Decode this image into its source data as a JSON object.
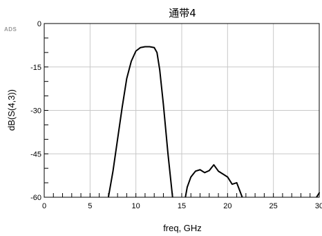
{
  "logo_text": "ADS",
  "chart_data": {
    "type": "line",
    "title": "通带4",
    "xlabel": "freq, GHz",
    "ylabel": "dB(S(4,3))",
    "xlim": [
      0,
      30
    ],
    "ylim": [
      -60,
      0
    ],
    "grid": true,
    "x_ticks": [
      0,
      5,
      10,
      15,
      20,
      25,
      30
    ],
    "y_ticks": [
      0,
      -15,
      -30,
      -45,
      -60
    ],
    "x_tick_labels": [
      "0",
      "5",
      "10",
      "15",
      "20",
      "25",
      "30"
    ],
    "y_tick_labels": [
      "0",
      "-15",
      "-30",
      "-45",
      "-60"
    ],
    "line_color": "#000000",
    "series": [
      {
        "segments": [
          [
            [
              7.0,
              -60
            ],
            [
              7.5,
              -51
            ],
            [
              8.0,
              -40
            ],
            [
              8.5,
              -29
            ],
            [
              9.0,
              -19
            ],
            [
              9.5,
              -13
            ],
            [
              10.0,
              -9.5
            ],
            [
              10.5,
              -8.3
            ],
            [
              11.0,
              -8.0
            ],
            [
              11.5,
              -8.0
            ],
            [
              12.0,
              -8.3
            ],
            [
              12.3,
              -10
            ],
            [
              12.6,
              -16
            ],
            [
              13.0,
              -28
            ],
            [
              13.5,
              -45
            ],
            [
              14.0,
              -60
            ]
          ],
          [
            [
              15.4,
              -60
            ],
            [
              15.6,
              -56.5
            ],
            [
              16.0,
              -53
            ],
            [
              16.5,
              -51
            ],
            [
              17.0,
              -50.5
            ],
            [
              17.5,
              -51.5
            ],
            [
              18.0,
              -50.8
            ],
            [
              18.5,
              -48.8
            ],
            [
              19.0,
              -51
            ],
            [
              19.5,
              -52
            ],
            [
              20.0,
              -53
            ],
            [
              20.5,
              -55.5
            ],
            [
              21.0,
              -55
            ],
            [
              21.3,
              -57.5
            ],
            [
              21.6,
              -60
            ]
          ],
          [
            [
              29.7,
              -60
            ],
            [
              30.0,
              -58.5
            ]
          ]
        ]
      }
    ]
  }
}
